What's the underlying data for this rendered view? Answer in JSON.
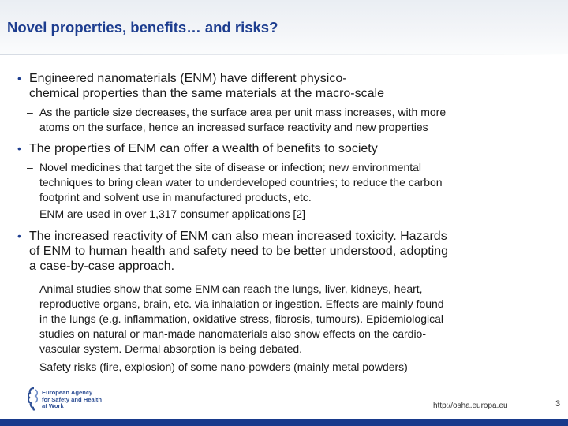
{
  "slide": {
    "title": "Novel properties, benefits… and risks?",
    "bullets": [
      {
        "lines": [
          "Engineered nanomaterials (ENM) have different physico-",
          "chemical properties than the same materials at the macro-scale"
        ],
        "subs": [
          {
            "lines": [
              "As the particle size decreases, the surface area per unit mass increases, with more",
              "atoms on the surface, hence an increased surface reactivity and new properties"
            ]
          }
        ]
      },
      {
        "lines": [
          "The properties of ENM can offer a wealth of benefits to society"
        ],
        "subs": [
          {
            "lines": [
              "Novel medicines that target the site of disease or infection; new environmental",
              "techniques to bring clean water to underdeveloped countries; to reduce the carbon",
              "footprint and solvent use in manufactured products, etc."
            ]
          },
          {
            "lines": [
              "ENM are used in over 1,317 consumer applications [2]"
            ]
          }
        ]
      },
      {
        "lines": [
          "The increased reactivity of ENM can also mean increased toxicity. Hazards",
          "of ENM to human health and safety need to be better understood, adopting",
          "a case-by-case approach."
        ],
        "subs": [
          {
            "lines": [
              "Animal studies show that some ENM can reach the lungs, liver, kidneys, heart,",
              "reproductive organs, brain, etc. via inhalation or ingestion. Effects are mainly found",
              "in the lungs (e.g. inflammation, oxidative stress, fibrosis, tumours). Epidemiological",
              "studies on natural or man-made nanomaterials also show effects on the cardio-",
              "vascular system. Dermal absorption is being debated."
            ]
          },
          {
            "lines": [
              "Safety risks (fire, explosion) of some nano-powders (mainly metal powders)"
            ]
          }
        ]
      }
    ],
    "bullet_char": "•",
    "dash_char": "–"
  },
  "footer": {
    "logo_text": "European Agency\nfor Safety and Health\nat Work",
    "url": "http://osha.europa.eu",
    "page_number": "3"
  },
  "colors": {
    "title": "#1d3d8f",
    "footer_bar": "#183a8c"
  }
}
